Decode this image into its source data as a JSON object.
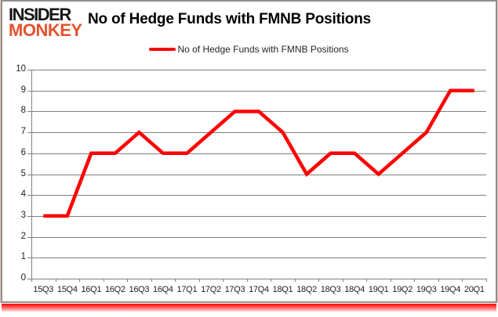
{
  "brand": {
    "line1": "INSIDER",
    "line2": "MONKEY"
  },
  "header": {
    "title": "No of Hedge Funds with FMNB Positions"
  },
  "legend": {
    "label": "No of Hedge Funds with FMNB Positions"
  },
  "colors": {
    "series_red": "#ff0000",
    "logo_orange": "#e2532e",
    "gridline_gray": "#808080",
    "frame_gray": "#8f8f8f",
    "label_dark": "#222222"
  },
  "chart_data": {
    "type": "line",
    "title": "No of Hedge Funds with FMNB Positions",
    "categories": [
      "15Q3",
      "15Q4",
      "16Q1",
      "16Q2",
      "16Q3",
      "16Q4",
      "17Q1",
      "17Q2",
      "17Q3",
      "17Q4",
      "18Q1",
      "18Q2",
      "18Q3",
      "18Q4",
      "19Q1",
      "19Q2",
      "19Q3",
      "19Q4",
      "20Q1"
    ],
    "series": [
      {
        "name": "No of Hedge Funds with FMNB Positions",
        "color": "#ff0000",
        "values": [
          3,
          3,
          6,
          6,
          7,
          6,
          6,
          7,
          8,
          8,
          7,
          5,
          6,
          6,
          5,
          6,
          7,
          9,
          9
        ]
      }
    ],
    "xlabel": "",
    "ylabel": "",
    "ylim": [
      0,
      10
    ],
    "ytick_step": 1,
    "grid": true,
    "gridline_color": "#808080",
    "legend_position": "top-center"
  }
}
